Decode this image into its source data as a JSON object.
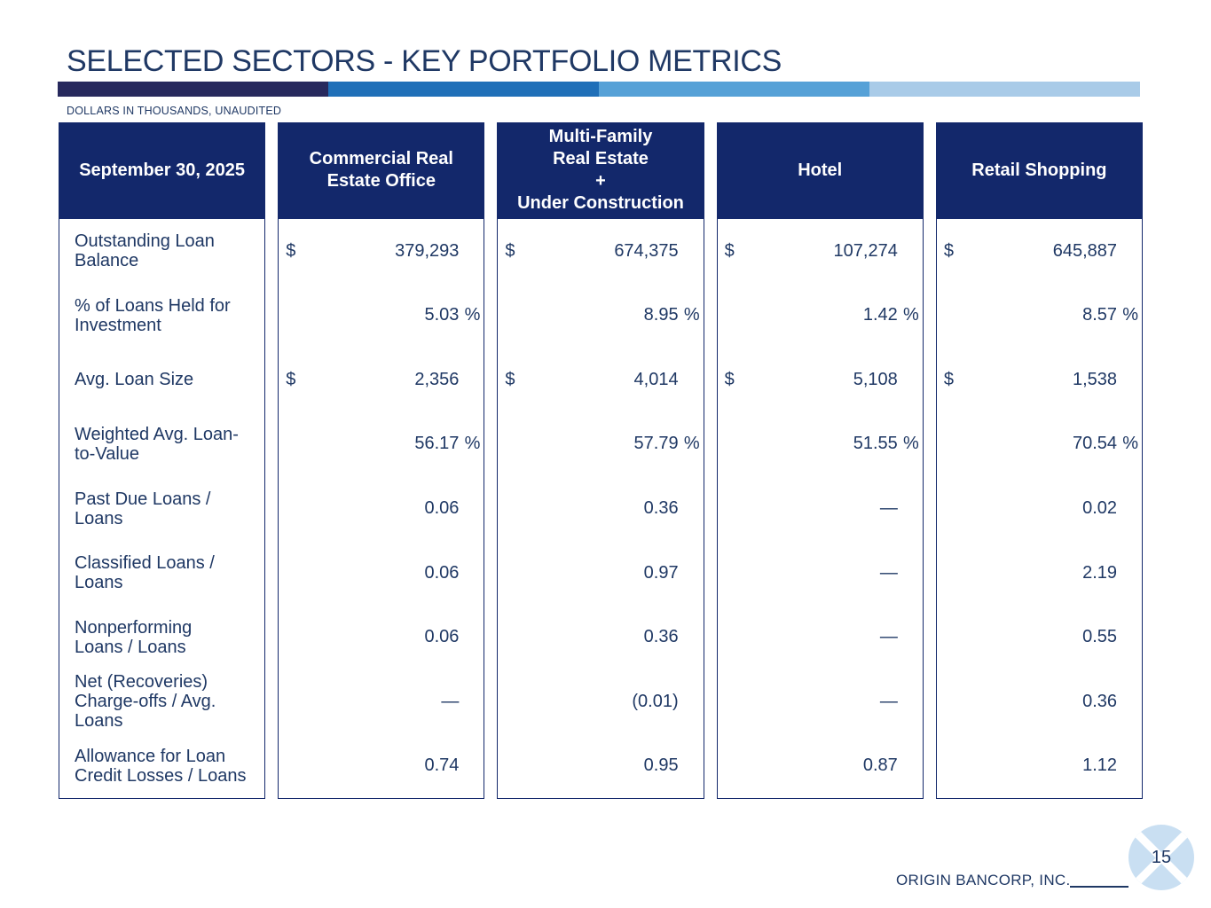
{
  "slide": {
    "title": "SELECTED SECTORS - KEY PORTFOLIO METRICS",
    "note": "DOLLARS IN THOUSANDS, UNAUDITED",
    "footer": {
      "company": "ORIGIN BANCORP, INC.",
      "page_number": "15"
    },
    "accent_bar_colors": [
      "#27295d",
      "#1f6fb8",
      "#56a1d7",
      "#a9cbe8"
    ],
    "colors": {
      "header_bg": "#13286b",
      "table_border": "#13286b",
      "text": "#1f3864",
      "header_text": "#ffffff",
      "logo_circle": "#c9dff2"
    }
  },
  "table": {
    "corner_header": "September 30, 2025",
    "column_headers": [
      "Commercial Real\nEstate Office",
      "Multi-Family\nReal Estate\n+\nUnder Construction",
      "Hotel",
      "Retail Shopping"
    ],
    "rows": [
      {
        "label": "Outstanding Loan\nBalance",
        "prefix": "$",
        "suffix": "",
        "values": [
          "379,293",
          "674,375",
          "107,274",
          "645,887"
        ]
      },
      {
        "label": "% of Loans Held for\nInvestment",
        "prefix": "",
        "suffix": "%",
        "values": [
          "5.03",
          "8.95",
          "1.42",
          "8.57"
        ]
      },
      {
        "label": "Avg. Loan Size",
        "prefix": "$",
        "suffix": "",
        "values": [
          "2,356",
          "4,014",
          "5,108",
          "1,538"
        ]
      },
      {
        "label": "Weighted Avg. Loan-\nto-Value",
        "prefix": "",
        "suffix": "%",
        "values": [
          "56.17",
          "57.79",
          "51.55",
          "70.54"
        ]
      },
      {
        "label": "Past Due Loans /\nLoans",
        "prefix": "",
        "suffix": "",
        "values": [
          "0.06",
          "0.36",
          "—",
          "0.02"
        ]
      },
      {
        "label": "Classified Loans /\nLoans",
        "prefix": "",
        "suffix": "",
        "values": [
          "0.06",
          "0.97",
          "—",
          "2.19"
        ]
      },
      {
        "label": "Nonperforming\nLoans / Loans",
        "prefix": "",
        "suffix": "",
        "values": [
          "0.06",
          "0.36",
          "—",
          "0.55"
        ]
      },
      {
        "label": "Net (Recoveries)\nCharge-offs / Avg.\nLoans",
        "prefix": "",
        "suffix": "",
        "values": [
          "—",
          "(0.01)",
          "—",
          "0.36"
        ]
      },
      {
        "label": "Allowance for Loan\nCredit Losses / Loans",
        "prefix": "",
        "suffix": "",
        "values": [
          "0.74",
          "0.95",
          "0.87",
          "1.12"
        ]
      }
    ]
  }
}
